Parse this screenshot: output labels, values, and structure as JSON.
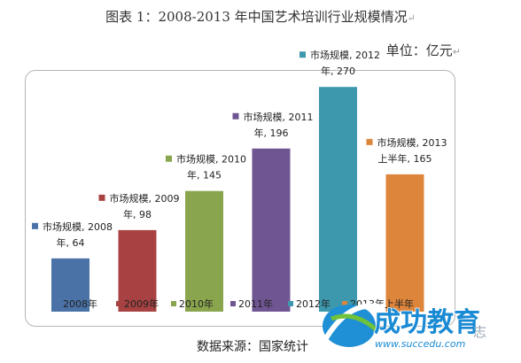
{
  "title": "图表 1：2008-2013 年中国艺术培训行业规模情况",
  "unit": "单位：亿元",
  "source": "数据来源：国家统计",
  "logo": {
    "name": "成功教育",
    "url": "www.succedu.com",
    "trailing": "志"
  },
  "colors": {
    "2008年": "#4a72a6",
    "2009年": "#a84242",
    "2010年": "#89a54e",
    "2011年": "#6f5592",
    "2012年": "#3d98ad",
    "2013年上半年": "#dc853b"
  },
  "chart_data": {
    "type": "bar",
    "categories": [
      "2008年",
      "2009年",
      "2010年",
      "2011年",
      "2012年",
      "2013年上半年"
    ],
    "series_label": "市场规模",
    "values": [
      64,
      98,
      145,
      196,
      270,
      165
    ],
    "data_labels": [
      [
        "市场规模, 2008",
        "年, 64"
      ],
      [
        "市场规模, 2009",
        "年, 98"
      ],
      [
        "市场规模, 2010",
        "年, 145"
      ],
      [
        "市场规模, 2011",
        "年, 196"
      ],
      [
        "市场规模, 2012",
        "年, 270"
      ],
      [
        "市场规模, 2013",
        "上半年, 165"
      ]
    ],
    "legend": [
      "2008年",
      "2009年",
      "2010年",
      "2011年",
      "2012年",
      "2013年上半年"
    ],
    "legend_placement": "bottom",
    "grid": false,
    "ylim": [
      0,
      300
    ]
  }
}
